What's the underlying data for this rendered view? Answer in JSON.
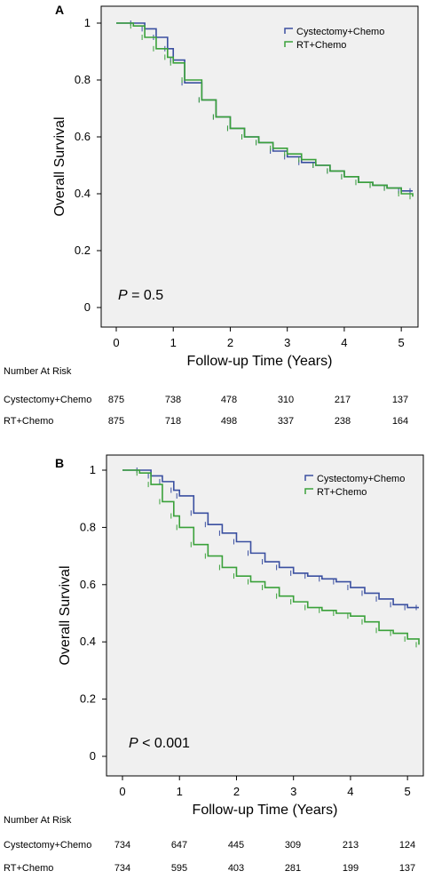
{
  "chart_data": [
    {
      "type": "line",
      "panel_label": "A",
      "xlabel": "Follow-up Time (Years)",
      "ylabel": "Overall Survival",
      "xlim": [
        0,
        5.2
      ],
      "ylim": [
        0,
        1
      ],
      "xticks": [
        "0",
        "1",
        "2",
        "3",
        "4",
        "5"
      ],
      "yticks": [
        "0",
        "0.2",
        "0.4",
        "0.6",
        "0.8",
        "1"
      ],
      "grid": false,
      "legend_position": "top-right",
      "annotation_italic": "P",
      "annotation_rest": " = 0.5",
      "series": [
        {
          "name": "Cystectomy+Chemo",
          "color": "#3a4fa0",
          "x": [
            0,
            0.3,
            0.5,
            0.7,
            0.9,
            1.0,
            1.2,
            1.5,
            1.75,
            2.0,
            2.25,
            2.5,
            2.75,
            3.0,
            3.25,
            3.5,
            3.75,
            4.0,
            4.25,
            4.5,
            4.75,
            5.0,
            5.2
          ],
          "y": [
            1.0,
            1.0,
            0.98,
            0.95,
            0.91,
            0.87,
            0.79,
            0.73,
            0.67,
            0.63,
            0.6,
            0.58,
            0.55,
            0.53,
            0.51,
            0.5,
            0.48,
            0.46,
            0.44,
            0.43,
            0.42,
            0.41,
            0.41
          ]
        },
        {
          "name": "RT+Chemo",
          "color": "#3aa13a",
          "x": [
            0,
            0.3,
            0.5,
            0.7,
            0.9,
            1.0,
            1.2,
            1.5,
            1.75,
            2.0,
            2.25,
            2.5,
            2.75,
            3.0,
            3.25,
            3.5,
            3.75,
            4.0,
            4.25,
            4.5,
            4.75,
            5.0,
            5.2
          ],
          "y": [
            1.0,
            0.99,
            0.95,
            0.91,
            0.88,
            0.86,
            0.8,
            0.73,
            0.67,
            0.63,
            0.6,
            0.58,
            0.56,
            0.54,
            0.52,
            0.5,
            0.48,
            0.46,
            0.44,
            0.43,
            0.42,
            0.4,
            0.39
          ]
        }
      ]
    },
    {
      "type": "line",
      "panel_label": "B",
      "xlabel": "Follow-up Time (Years)",
      "ylabel": "Overall Survival",
      "xlim": [
        0,
        5.2
      ],
      "ylim": [
        0,
        1
      ],
      "xticks": [
        "0",
        "1",
        "2",
        "3",
        "4",
        "5"
      ],
      "yticks": [
        "0",
        "0.2",
        "0.4",
        "0.6",
        "0.8",
        "1"
      ],
      "grid": false,
      "legend_position": "top-right",
      "annotation_italic": "P",
      "annotation_rest": " < 0.001",
      "series": [
        {
          "name": "Cystectomy+Chemo",
          "color": "#3a4fa0",
          "x": [
            0,
            0.3,
            0.5,
            0.7,
            0.9,
            1.0,
            1.25,
            1.5,
            1.75,
            2.0,
            2.25,
            2.5,
            2.75,
            3.0,
            3.25,
            3.5,
            3.75,
            4.0,
            4.25,
            4.5,
            4.75,
            5.0,
            5.2
          ],
          "y": [
            1.0,
            1.0,
            0.98,
            0.96,
            0.93,
            0.91,
            0.85,
            0.81,
            0.78,
            0.75,
            0.71,
            0.68,
            0.66,
            0.64,
            0.63,
            0.62,
            0.61,
            0.59,
            0.57,
            0.55,
            0.53,
            0.52,
            0.52
          ]
        },
        {
          "name": "RT+Chemo",
          "color": "#3aa13a",
          "x": [
            0,
            0.3,
            0.5,
            0.7,
            0.9,
            1.0,
            1.25,
            1.5,
            1.75,
            2.0,
            2.25,
            2.5,
            2.75,
            3.0,
            3.25,
            3.5,
            3.75,
            4.0,
            4.25,
            4.5,
            4.75,
            5.0,
            5.2
          ],
          "y": [
            1.0,
            0.99,
            0.95,
            0.89,
            0.84,
            0.8,
            0.74,
            0.7,
            0.66,
            0.63,
            0.61,
            0.59,
            0.56,
            0.54,
            0.52,
            0.51,
            0.5,
            0.49,
            0.47,
            0.44,
            0.43,
            0.41,
            0.39
          ]
        }
      ]
    }
  ],
  "risk_tables": [
    {
      "title": "Number At Risk",
      "rows": [
        {
          "label": "Cystectomy+Chemo",
          "counts": [
            "875",
            "738",
            "478",
            "310",
            "217",
            "137"
          ]
        },
        {
          "label": "RT+Chemo",
          "counts": [
            "875",
            "718",
            "498",
            "337",
            "238",
            "164"
          ]
        }
      ]
    },
    {
      "title": "Number At Risk",
      "rows": [
        {
          "label": "Cystectomy+Chemo",
          "counts": [
            "734",
            "647",
            "445",
            "309",
            "213",
            "124"
          ]
        },
        {
          "label": "RT+Chemo",
          "counts": [
            "734",
            "595",
            "403",
            "281",
            "199",
            "137"
          ]
        }
      ]
    }
  ]
}
